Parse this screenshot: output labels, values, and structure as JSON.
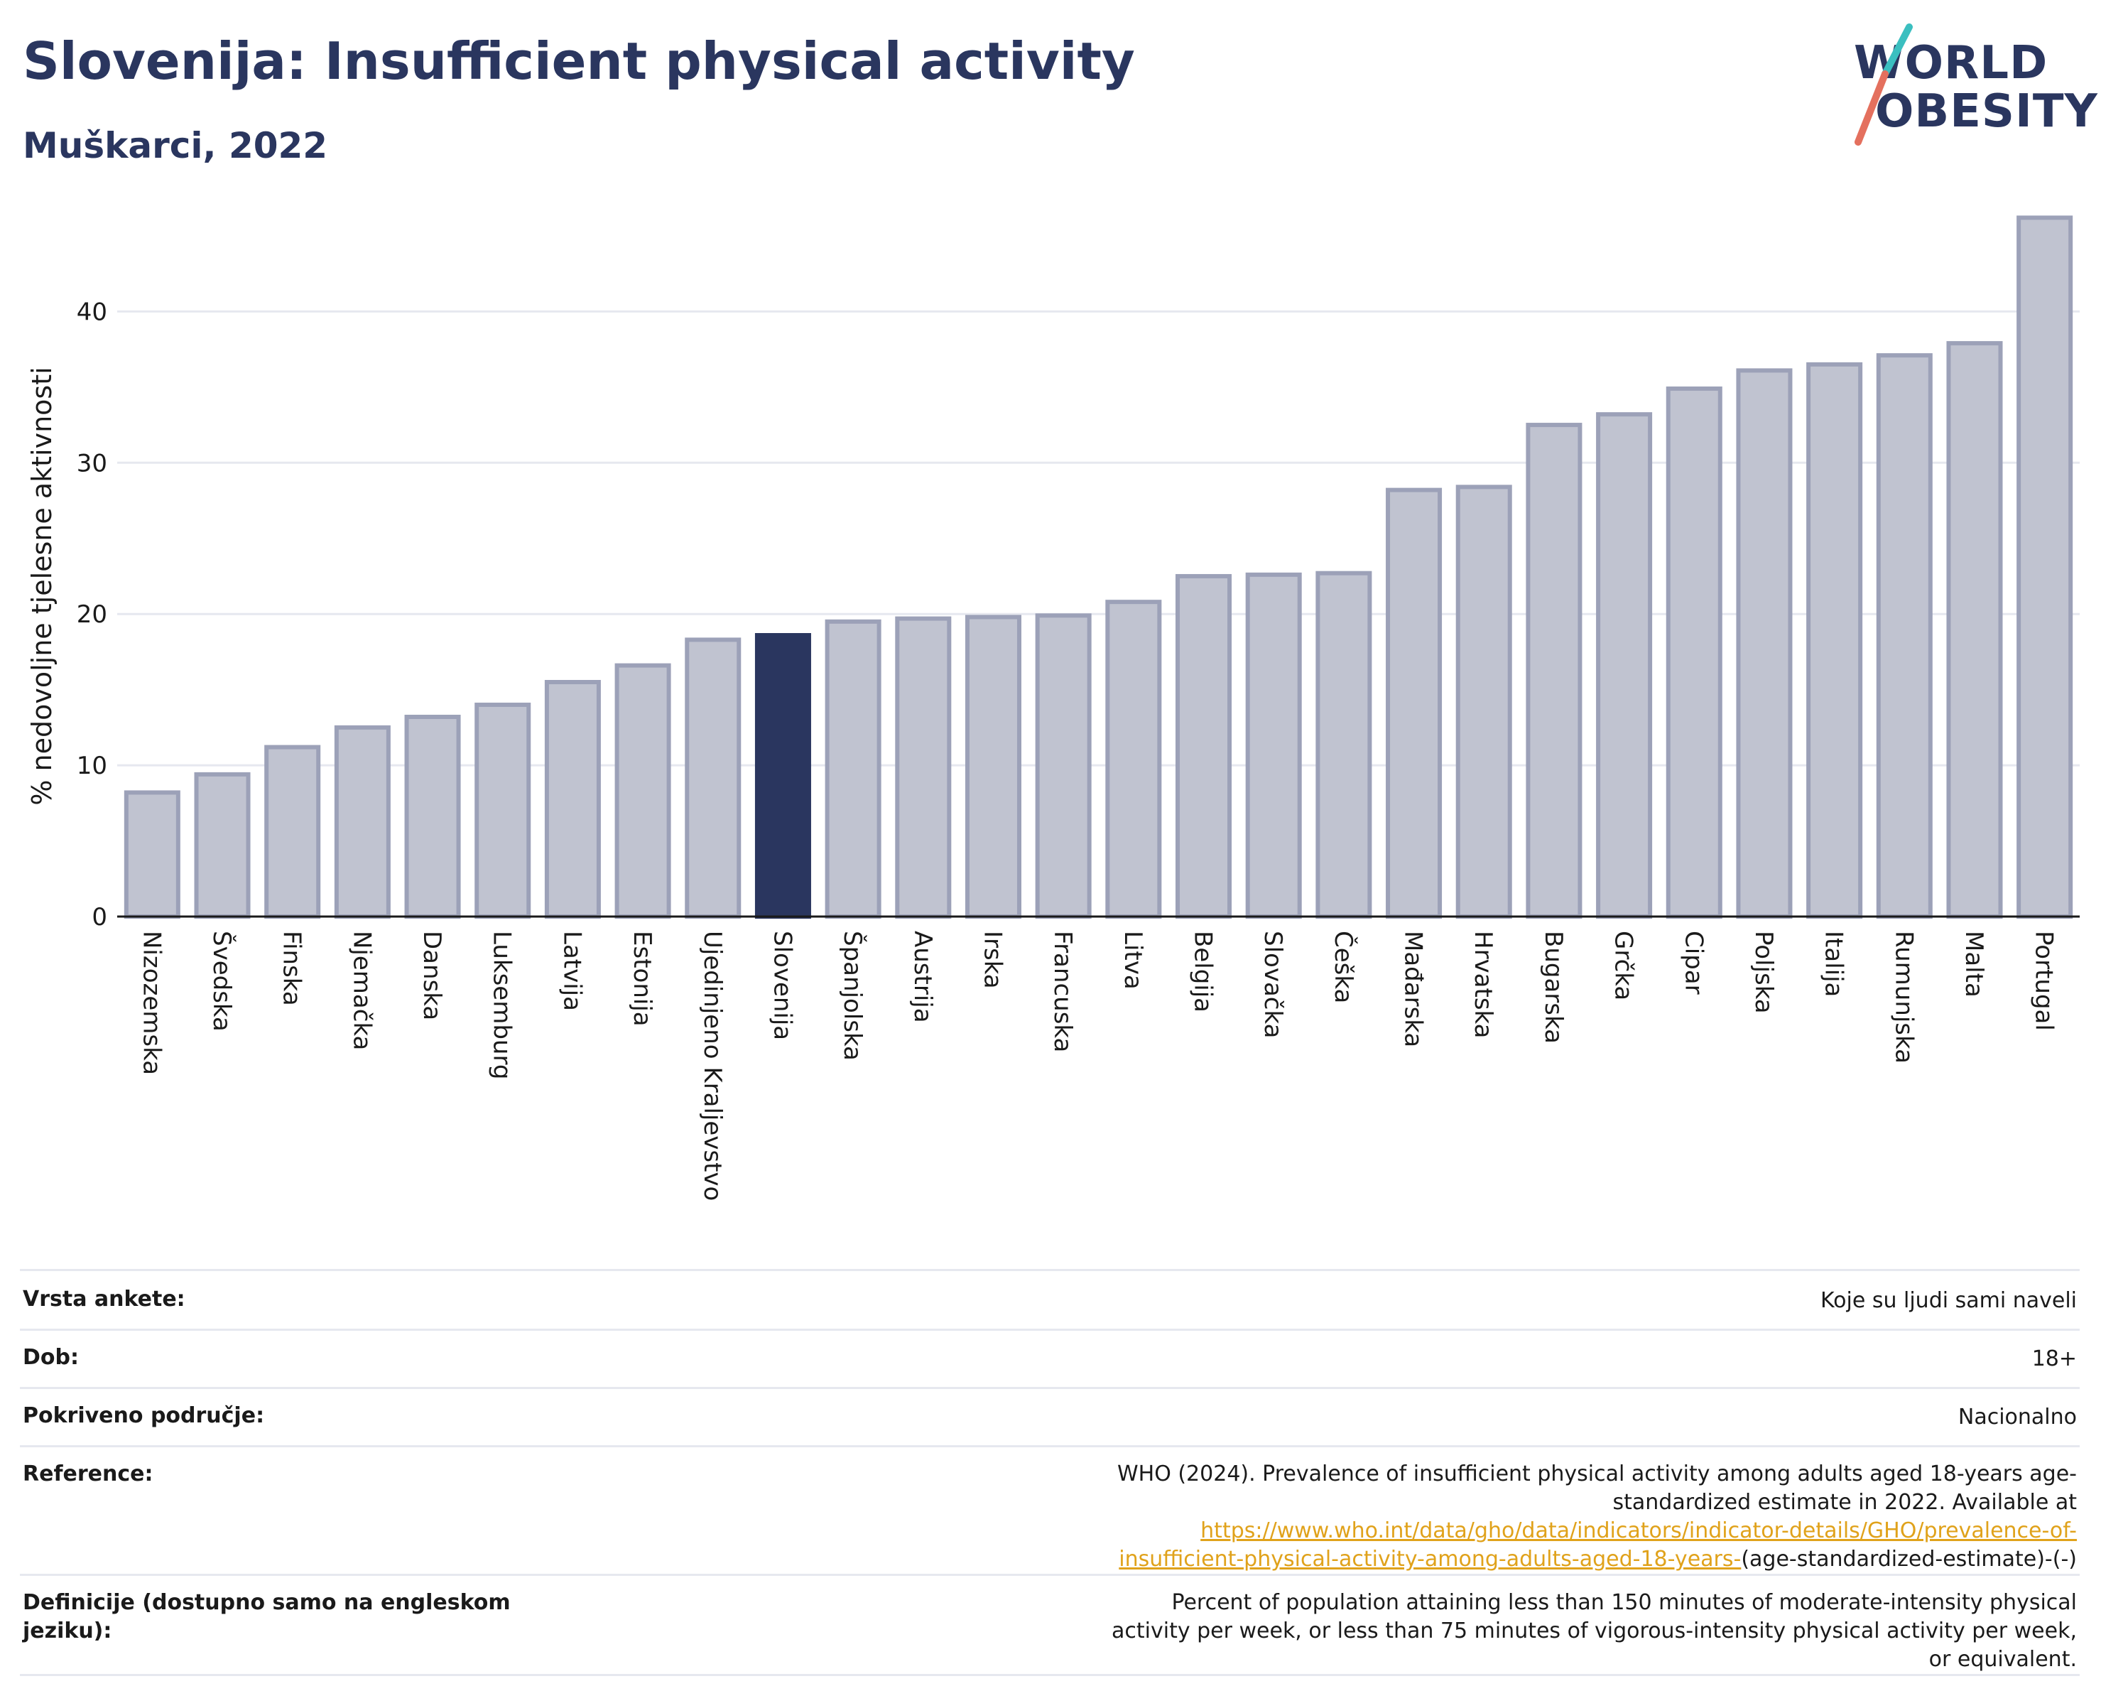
{
  "header": {
    "title": "Slovenija: Insufficient physical activity",
    "subtitle": "Muškarci, 2022"
  },
  "logo": {
    "line1": "WORLD",
    "line2": "OBESITY"
  },
  "chart_data": {
    "type": "bar",
    "title": "Slovenija: Insufficient physical activity",
    "subtitle": "Muškarci, 2022",
    "ylabel": "% nedovoljne tjelesne aktivnosti",
    "xlabel": "",
    "ylim": [
      0,
      46.5
    ],
    "yticks": [
      0,
      10,
      20,
      30,
      40
    ],
    "grid": true,
    "highlight": "Slovenija",
    "categories": [
      "Nizozemska",
      "Švedska",
      "Finska",
      "Njemačka",
      "Danska",
      "Luksemburg",
      "Latvija",
      "Estonija",
      "Ujedinjeno Kraljevstvo",
      "Slovenija",
      "Španjolska",
      "Austrija",
      "Irska",
      "Francuska",
      "Litva",
      "Belgija",
      "Slovačka",
      "Češka",
      "Mađarska",
      "Hrvatska",
      "Bugarska",
      "Grčka",
      "Cipar",
      "Poljska",
      "Italija",
      "Rumunjska",
      "Malta",
      "Portugal"
    ],
    "values": [
      8.2,
      9.4,
      11.2,
      12.5,
      13.2,
      14.0,
      15.5,
      16.6,
      18.3,
      18.6,
      19.5,
      19.7,
      19.8,
      19.9,
      20.8,
      22.5,
      22.6,
      22.7,
      28.2,
      28.4,
      32.5,
      33.2,
      34.9,
      36.1,
      36.5,
      37.1,
      37.9,
      46.2
    ],
    "colors": {
      "bar": "#c0c3d0",
      "bar_border": "#9ca1b8",
      "highlight": "#2a365f",
      "grid": "#e6e8ef",
      "axis": "#1a1a1a"
    }
  },
  "info": [
    {
      "label": "Vrsta ankete:",
      "value": "Koje su ljudi sami naveli"
    },
    {
      "label": "Dob:",
      "value": "18+"
    },
    {
      "label": "Pokriveno područje:",
      "value": "Nacionalno"
    },
    {
      "label": "Reference:",
      "value": "WHO (2024). Prevalence of insufficient physical activity among adults aged 18-years age-standardized estimate in 2022. Available at",
      "link": "https://www.who.int/data/gho/data/indicators/indicator-details/GHO/prevalence-of-insufficient-physical-activity-among-adults-aged-18-years-",
      "suffix": "(age-standardized-estimate)-(-)"
    },
    {
      "label": "Definicije (dostupno samo na engleskom jeziku):",
      "value": "Percent of population attaining less than 150 minutes of moderate-intensity physical activity per week, or less than 75 minutes of vigorous-intensity physical activity per week, or equivalent."
    }
  ]
}
